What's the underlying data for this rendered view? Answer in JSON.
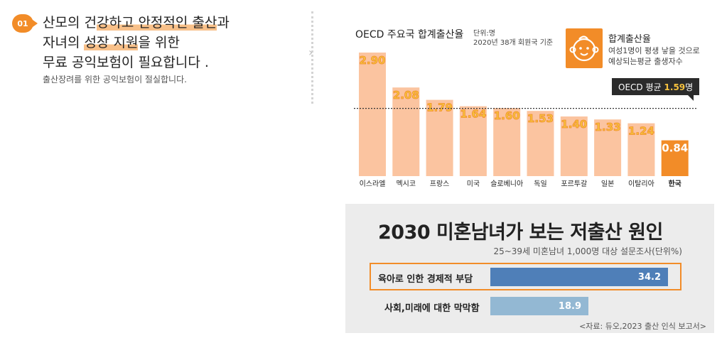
{
  "headline": {
    "badge": "01",
    "l1_a": "산모의 건",
    "l1_b": "강하고 안정적인 출산",
    "l1_c": "과",
    "l2_a": "자녀의 ",
    "l2_b": "성장 지원",
    "l2_c": "을 위한",
    "l3": "무료 공익보험이 필요합니다 .",
    "sub": "출산장려를 위한 공익보험이 절실합니다."
  },
  "chart_header": {
    "title": "OECD 주요국 합계출산율",
    "unit": "단위:명",
    "basis": "2020년 38개 회원국 기준",
    "def_title": "합계출산율",
    "def_line1": "여성1명이 평생 낳을 것으로",
    "def_line2": "예상되는평균 출생자수",
    "avg_prefix": "OECD 평균",
    "avg_value": "1.59",
    "avg_suffix": "명"
  },
  "chart_data": [
    {
      "type": "bar",
      "title": "OECD 주요국 합계출산율",
      "categories": [
        "이스라엘",
        "멕시코",
        "프랑스",
        "미국",
        "슬로베니아",
        "독일",
        "포르투갈",
        "일본",
        "이탈리아",
        "한국"
      ],
      "values": [
        2.9,
        2.08,
        1.79,
        1.64,
        1.6,
        1.53,
        1.4,
        1.33,
        1.24,
        0.84
      ],
      "value_labels": [
        "2.90",
        "2.08",
        "1.79",
        "1.64",
        "1.60",
        "1.53",
        "1.40",
        "1.33",
        "1.24",
        "0.84"
      ],
      "reference_line": {
        "label": "OECD 평균",
        "value": 1.59
      },
      "highlight_category": "한국",
      "colors": {
        "bar": "#fbc4a0",
        "highlight": "#f28c28",
        "label_fill": "#f6c23e",
        "label_stroke": "#f28c28"
      },
      "ylim": [
        0,
        3.0
      ],
      "grid": false
    },
    {
      "type": "bar",
      "orientation": "horizontal",
      "title": "2030 미혼남녀가 보는 저출산 원인",
      "subtitle": "25~39세 미혼남녀 1,000명 대상 설문조사(단위%)",
      "categories": [
        "육아로 인한 경제적 부담",
        "사회,미래에 대한 막막함"
      ],
      "values": [
        34.2,
        18.9
      ],
      "value_labels": [
        "34.2",
        "18.9"
      ],
      "colors": {
        "primary": "#4f7fb8",
        "secondary": "#93b8d3",
        "highlight_border": "#f28c28"
      },
      "source": "<자료: 듀오,2023 출산 인식 보고서>"
    }
  ]
}
